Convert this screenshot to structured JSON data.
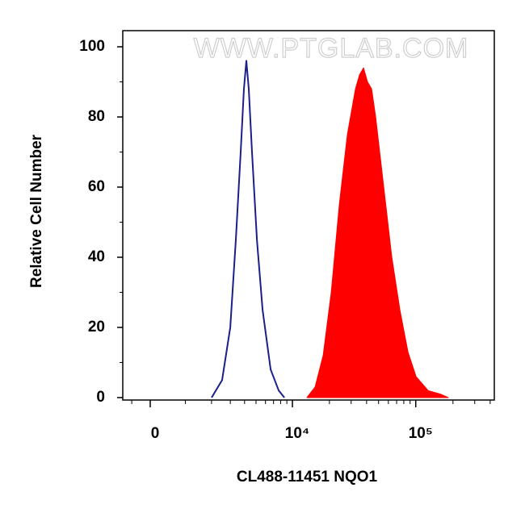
{
  "chart_data": {
    "type": "histogram-overlay",
    "watermark": "WWW.PTGLAB.COM",
    "xlabel": "CL488-11451 NQO1",
    "ylabel": "Relative Cell Number",
    "xscale": "asinh",
    "xlim": [
      -760,
      432000
    ],
    "xticks": [
      0,
      {
        "value": 10000,
        "label": "10⁴"
      },
      {
        "value": 100000,
        "label": "10⁵"
      }
    ],
    "xminorticks": [
      -500,
      1000,
      2000,
      3000,
      4000,
      5000,
      6000,
      7000,
      8000,
      9000,
      20000,
      30000,
      40000,
      50000,
      60000,
      70000,
      80000,
      90000,
      200000,
      300000,
      400000
    ],
    "ylim": [
      -0.7,
      104.6
    ],
    "yticks": [
      0,
      20,
      40,
      60,
      80,
      100
    ],
    "yminorticks": [
      10,
      30,
      50,
      70,
      90
    ],
    "series": [
      {
        "color": "#1a1f8c",
        "fill": false,
        "x": [
          2005,
          2528,
          2995,
          3361,
          3704,
          3950,
          4143,
          4345,
          4628,
          5088,
          5672,
          6623,
          7722,
          8589
        ],
        "values": [
          0,
          5,
          20,
          45,
          70,
          88,
          96,
          88,
          70,
          45,
          25,
          8,
          2,
          0
        ]
      },
      {
        "color": "#ff0000",
        "fill": true,
        "x": [
          13105,
          15290,
          17780,
          20670,
          24050,
          27960,
          32510,
          35040,
          37780,
          40710,
          43930,
          47370,
          55020,
          63990,
          74360,
          86460,
          100460,
          126000,
          157900,
          183500
        ],
        "values": [
          0,
          3,
          12,
          30,
          55,
          75,
          88,
          92,
          94,
          90,
          88,
          80,
          60,
          40,
          25,
          13,
          6,
          2,
          1,
          0
        ]
      }
    ]
  }
}
